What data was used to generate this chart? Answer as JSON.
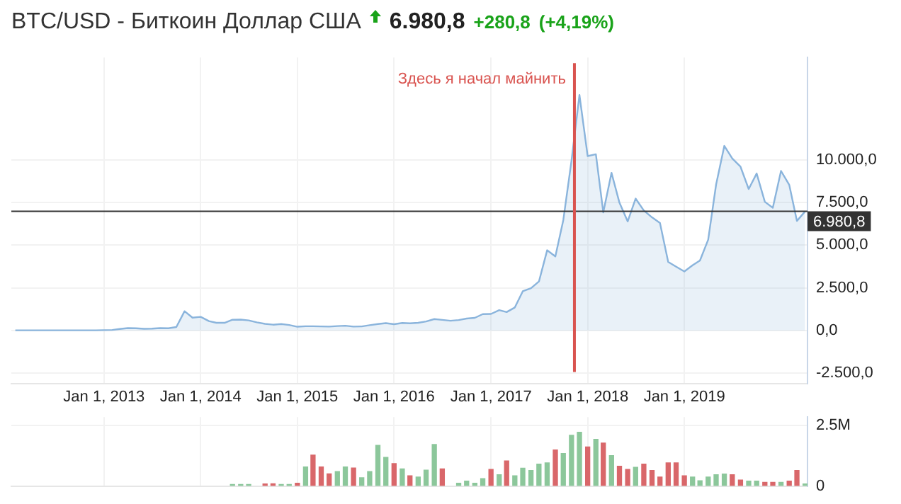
{
  "chart_data": [
    {
      "type": "area",
      "title": "BTC/USD - Биткоин Доллар США",
      "subtitle": "6.980,8 +280,8 (+4,19%)",
      "color": "#8ab4dc",
      "x": [
        "2012-02",
        "2012-03",
        "2012-04",
        "2012-05",
        "2012-06",
        "2012-07",
        "2012-08",
        "2012-09",
        "2012-10",
        "2012-11",
        "2012-12",
        "2013-01",
        "2013-02",
        "2013-03",
        "2013-04",
        "2013-05",
        "2013-06",
        "2013-07",
        "2013-08",
        "2013-09",
        "2013-10",
        "2013-11",
        "2013-12",
        "2014-01",
        "2014-02",
        "2014-03",
        "2014-04",
        "2014-05",
        "2014-06",
        "2014-07",
        "2014-08",
        "2014-09",
        "2014-10",
        "2014-11",
        "2014-12",
        "2015-01",
        "2015-02",
        "2015-03",
        "2015-04",
        "2015-05",
        "2015-06",
        "2015-07",
        "2015-08",
        "2015-09",
        "2015-10",
        "2015-11",
        "2015-12",
        "2016-01",
        "2016-02",
        "2016-03",
        "2016-04",
        "2016-05",
        "2016-06",
        "2016-07",
        "2016-08",
        "2016-09",
        "2016-10",
        "2016-11",
        "2016-12",
        "2017-01",
        "2017-02",
        "2017-03",
        "2017-04",
        "2017-05",
        "2017-06",
        "2017-07",
        "2017-08",
        "2017-09",
        "2017-10",
        "2017-11",
        "2017-12",
        "2018-01",
        "2018-02",
        "2018-03",
        "2018-04",
        "2018-05",
        "2018-06",
        "2018-07",
        "2018-08",
        "2018-09",
        "2018-10",
        "2018-11",
        "2018-12",
        "2019-01",
        "2019-02",
        "2019-03",
        "2019-04",
        "2019-05",
        "2019-06",
        "2019-07",
        "2019-08",
        "2019-09",
        "2019-10",
        "2019-11",
        "2019-12",
        "2020-01",
        "2020-02",
        "2020-03",
        "2020-04"
      ],
      "values": [
        10,
        10,
        10,
        10,
        10,
        10,
        10,
        10,
        10,
        10,
        10,
        20,
        30,
        90,
        140,
        130,
        100,
        110,
        140,
        130,
        200,
        1130,
        750,
        800,
        550,
        450,
        450,
        630,
        640,
        590,
        480,
        390,
        340,
        380,
        320,
        220,
        250,
        250,
        240,
        230,
        260,
        280,
        230,
        240,
        310,
        380,
        430,
        370,
        440,
        420,
        450,
        530,
        670,
        620,
        570,
        610,
        700,
        740,
        960,
        970,
        1190,
        1080,
        1350,
        2300,
        2480,
        2870,
        4700,
        4340,
        6470,
        9950,
        13800,
        10220,
        10330,
        6920,
        9240,
        7490,
        6390,
        7730,
        7030,
        6630,
        6300,
        4020,
        3740,
        3460,
        3820,
        4100,
        5320,
        8560,
        10820,
        10080,
        9600,
        8290,
        9200,
        7540,
        7190,
        9350,
        8540,
        6420,
        6980.8
      ],
      "xlim": [
        "2012-01-17",
        "2020-04-10"
      ],
      "xticks": [
        {
          "value": "2013-01-01",
          "label": "Jan 1, 2013"
        },
        {
          "value": "2014-01-01",
          "label": "Jan 1, 2014"
        },
        {
          "value": "2015-01-01",
          "label": "Jan 1, 2015"
        },
        {
          "value": "2016-01-01",
          "label": "Jan 1, 2016"
        },
        {
          "value": "2017-01-01",
          "label": "Jan 1, 2017"
        },
        {
          "value": "2018-01-01",
          "label": "Jan 1, 2018"
        },
        {
          "value": "2019-01-01",
          "label": "Jan 1, 2019"
        }
      ],
      "ylim": [
        -3100,
        16000
      ],
      "yticks": [
        {
          "value": -2500,
          "label": "-2.500,0"
        },
        {
          "value": 0,
          "label": "0,0"
        },
        {
          "value": 2500,
          "label": "2.500,0"
        },
        {
          "value": 5000,
          "label": "5.000,0"
        },
        {
          "value": 7500,
          "label": "7.500,0"
        },
        {
          "value": 10000,
          "label": "10.000,0"
        }
      ],
      "grid": true,
      "ref_lines": [
        {
          "axis": "y",
          "value": 6980.8,
          "label": "6.980,8",
          "color": "#333333"
        },
        {
          "axis": "x",
          "value": "2017-11-12",
          "label": "Здесь я начал майнить",
          "color": "#d9534f"
        }
      ]
    },
    {
      "type": "bar",
      "x": [
        "2014-05",
        "2014-06",
        "2014-07",
        "2014-08",
        "2014-09",
        "2014-10",
        "2014-11",
        "2014-12",
        "2015-01",
        "2015-02",
        "2015-03",
        "2015-04",
        "2015-05",
        "2015-06",
        "2015-07",
        "2015-08",
        "2015-09",
        "2015-10",
        "2015-11",
        "2015-12",
        "2016-01",
        "2016-02",
        "2016-03",
        "2016-04",
        "2016-05",
        "2016-06",
        "2016-07",
        "2016-08",
        "2016-09",
        "2016-10",
        "2016-11",
        "2016-12",
        "2017-01",
        "2017-02",
        "2017-03",
        "2017-04",
        "2017-05",
        "2017-06",
        "2017-07",
        "2017-08",
        "2017-09",
        "2017-10",
        "2017-11",
        "2017-12",
        "2018-01",
        "2018-02",
        "2018-03",
        "2018-04",
        "2018-05",
        "2018-06",
        "2018-07",
        "2018-08",
        "2018-09",
        "2018-10",
        "2018-11",
        "2018-12",
        "2019-01",
        "2019-02",
        "2019-03",
        "2019-04",
        "2019-05",
        "2019-06",
        "2019-07",
        "2019-08",
        "2019-09",
        "2019-10",
        "2019-11",
        "2019-12",
        "2020-01",
        "2020-02",
        "2020-03",
        "2020-04"
      ],
      "values": [
        70000,
        70000,
        70000,
        null,
        90000,
        100000,
        70000,
        70000,
        120000,
        790000,
        1280000,
        790000,
        510000,
        600000,
        790000,
        750000,
        350000,
        600000,
        1680000,
        1190000,
        930000,
        710000,
        430000,
        380000,
        660000,
        1720000,
        710000,
        null,
        120000,
        210000,
        120000,
        310000,
        690000,
        470000,
        1040000,
        430000,
        740000,
        650000,
        910000,
        960000,
        1490000,
        1350000,
        2100000,
        2220000,
        1620000,
        1930000,
        1780000,
        1260000,
        820000,
        690000,
        780000,
        910000,
        650000,
        380000,
        960000,
        960000,
        430000,
        380000,
        220000,
        380000,
        470000,
        500000,
        470000,
        250000,
        210000,
        210000,
        160000,
        160000,
        160000,
        210000,
        650000,
        90000
      ],
      "colors": [
        "#8cc79b",
        "#8cc79b",
        "#8cc79b",
        null,
        "#d9676a",
        "#d9676a",
        "#8cc79b",
        "#8cc79b",
        "#d9676a",
        "#8cc79b",
        "#d9676a",
        "#d9676a",
        "#d9676a",
        "#8cc79b",
        "#8cc79b",
        "#d9676a",
        "#8cc79b",
        "#8cc79b",
        "#8cc79b",
        "#8cc79b",
        "#d9676a",
        "#8cc79b",
        "#d9676a",
        "#8cc79b",
        "#8cc79b",
        "#8cc79b",
        "#d9676a",
        null,
        "#8cc79b",
        "#8cc79b",
        "#8cc79b",
        "#8cc79b",
        "#d9676a",
        "#8cc79b",
        "#d9676a",
        "#8cc79b",
        "#8cc79b",
        "#8cc79b",
        "#8cc79b",
        "#8cc79b",
        "#d9676a",
        "#8cc79b",
        "#8cc79b",
        "#8cc79b",
        "#d9676a",
        "#8cc79b",
        "#d9676a",
        "#8cc79b",
        "#d9676a",
        "#d9676a",
        "#8cc79b",
        "#d9676a",
        "#d9676a",
        "#d9676a",
        "#d9676a",
        "#d9676a",
        "#d9676a",
        "#8cc79b",
        "#8cc79b",
        "#8cc79b",
        "#8cc79b",
        "#8cc79b",
        "#d9676a",
        "#d9676a",
        "#8cc79b",
        "#8cc79b",
        "#d9676a",
        "#d9676a",
        "#8cc79b",
        "#d9676a",
        "#d9676a",
        "#8cc79b"
      ],
      "xlim": [
        "2012-01-17",
        "2020-04-10"
      ],
      "ylim": [
        0,
        2850000
      ],
      "xticks": [
        {
          "value": "2013-01-01",
          "label": null
        },
        {
          "value": "2014-01-01",
          "label": null
        },
        {
          "value": "2015-01-01",
          "label": null
        },
        {
          "value": "2016-01-01",
          "label": null
        },
        {
          "value": "2017-01-01",
          "label": null
        },
        {
          "value": "2018-01-01",
          "label": null
        },
        {
          "value": "2019-01-01",
          "label": null
        }
      ],
      "yticks": [
        0,
        {
          "value": 2500000,
          "label": "2.5M"
        }
      ],
      "grid": true,
      "tick_labels": "y"
    }
  ]
}
